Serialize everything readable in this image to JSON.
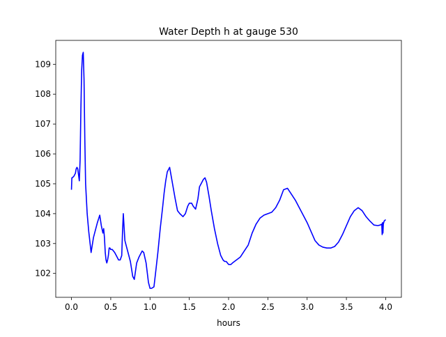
{
  "chart_data": {
    "type": "line",
    "title": "Water Depth h at gauge 530",
    "xlabel": "hours",
    "ylabel": "",
    "xlim": [
      -0.2,
      4.2
    ],
    "ylim": [
      101.2,
      109.8
    ],
    "xticks": [
      0.0,
      0.5,
      1.0,
      1.5,
      2.0,
      2.5,
      3.0,
      3.5,
      4.0
    ],
    "xtick_labels": [
      "0.0",
      "0.5",
      "1.0",
      "1.5",
      "2.0",
      "2.5",
      "3.0",
      "3.5",
      "4.0"
    ],
    "yticks": [
      102,
      103,
      104,
      105,
      106,
      107,
      108,
      109
    ],
    "ytick_labels": [
      "102",
      "103",
      "104",
      "105",
      "106",
      "107",
      "108",
      "109"
    ],
    "grid": false,
    "line_color": "#0000ff",
    "series": [
      {
        "x": [
          0.0,
          0.005,
          0.01,
          0.03,
          0.05,
          0.06,
          0.07,
          0.08,
          0.09,
          0.1,
          0.11,
          0.12,
          0.13,
          0.14,
          0.15,
          0.16,
          0.17,
          0.18,
          0.19,
          0.2,
          0.22,
          0.25,
          0.28,
          0.3,
          0.33,
          0.36,
          0.38,
          0.4,
          0.41,
          0.42,
          0.43,
          0.44,
          0.45,
          0.46,
          0.47,
          0.48,
          0.49,
          0.5,
          0.52,
          0.55,
          0.57,
          0.6,
          0.62,
          0.64,
          0.65,
          0.66,
          0.67,
          0.68,
          0.7,
          0.72,
          0.75,
          0.78,
          0.8,
          0.83,
          0.86,
          0.88,
          0.9,
          0.92,
          0.95,
          0.98,
          1.0,
          1.02,
          1.05,
          1.07,
          1.1,
          1.13,
          1.16,
          1.18,
          1.2,
          1.22,
          1.25,
          1.28,
          1.32,
          1.35,
          1.38,
          1.42,
          1.45,
          1.48,
          1.5,
          1.53,
          1.55,
          1.58,
          1.61,
          1.63,
          1.65,
          1.68,
          1.7,
          1.72,
          1.75,
          1.78,
          1.82,
          1.86,
          1.9,
          1.93,
          1.95,
          1.97,
          2.0,
          2.03,
          2.05,
          2.1,
          2.15,
          2.2,
          2.25,
          2.3,
          2.35,
          2.4,
          2.45,
          2.5,
          2.55,
          2.6,
          2.65,
          2.7,
          2.75,
          2.8,
          2.85,
          2.9,
          2.95,
          3.0,
          3.05,
          3.1,
          3.15,
          3.2,
          3.25,
          3.3,
          3.35,
          3.4,
          3.45,
          3.5,
          3.55,
          3.6,
          3.65,
          3.7,
          3.75,
          3.8,
          3.85,
          3.9,
          3.93,
          3.95,
          3.955,
          3.96,
          3.965,
          3.97,
          3.975,
          3.98,
          4.0
        ],
        "y": [
          104.8,
          105.2,
          105.2,
          105.25,
          105.35,
          105.5,
          105.55,
          105.5,
          105.3,
          105.1,
          105.8,
          107.5,
          108.8,
          109.3,
          109.4,
          108.5,
          106.5,
          105.0,
          104.5,
          104.0,
          103.4,
          102.7,
          103.2,
          103.4,
          103.7,
          103.95,
          103.6,
          103.35,
          103.5,
          103.2,
          102.7,
          102.45,
          102.35,
          102.45,
          102.6,
          102.85,
          102.85,
          102.8,
          102.8,
          102.7,
          102.6,
          102.45,
          102.45,
          102.6,
          103.4,
          104.0,
          103.55,
          103.1,
          102.9,
          102.7,
          102.4,
          101.9,
          101.8,
          102.35,
          102.55,
          102.65,
          102.75,
          102.7,
          102.35,
          101.7,
          101.5,
          101.5,
          101.55,
          102.0,
          102.7,
          103.5,
          104.2,
          104.7,
          105.1,
          105.4,
          105.55,
          105.1,
          104.5,
          104.1,
          104.0,
          103.9,
          104.0,
          104.25,
          104.35,
          104.35,
          104.25,
          104.15,
          104.5,
          104.9,
          105.0,
          105.15,
          105.2,
          105.05,
          104.6,
          104.1,
          103.5,
          103.0,
          102.6,
          102.45,
          102.4,
          102.4,
          102.3,
          102.3,
          102.35,
          102.45,
          102.55,
          102.75,
          102.95,
          103.35,
          103.65,
          103.85,
          103.95,
          104.0,
          104.05,
          104.2,
          104.45,
          104.8,
          104.85,
          104.65,
          104.45,
          104.2,
          103.95,
          103.7,
          103.4,
          103.1,
          102.95,
          102.88,
          102.85,
          102.85,
          102.9,
          103.05,
          103.3,
          103.6,
          103.9,
          104.1,
          104.2,
          104.1,
          103.9,
          103.75,
          103.62,
          103.6,
          103.62,
          103.65,
          103.3,
          103.7,
          103.35,
          103.65,
          103.7,
          103.75,
          103.8
        ]
      }
    ]
  }
}
